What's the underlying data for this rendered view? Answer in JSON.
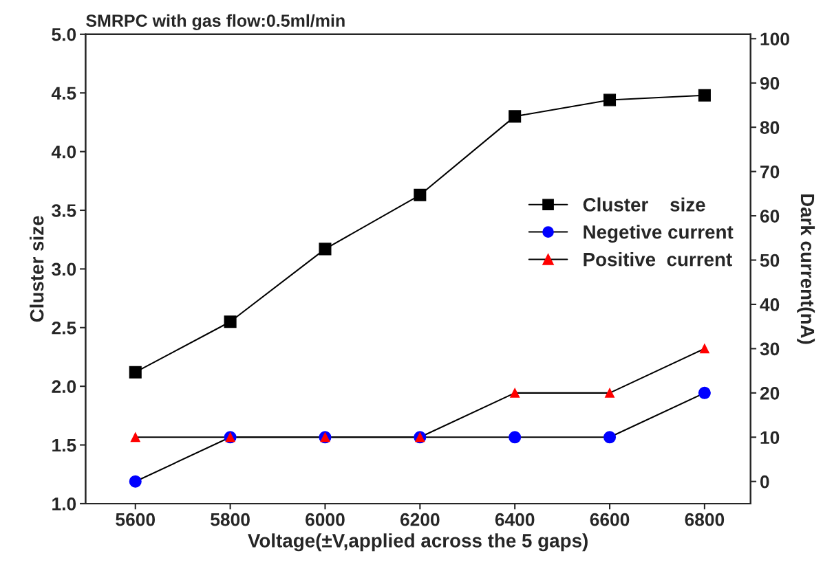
{
  "chart_data": {
    "type": "line",
    "title": "SMRPC with gas flow:0.5ml/min",
    "xlabel": "Voltage(±V,applied across the 5 gaps)",
    "ylabel": "Cluster size",
    "y2label": "Dark current(nA)",
    "x": [
      5600,
      5800,
      6000,
      6200,
      6400,
      6600,
      6800
    ],
    "series": [
      {
        "name": "Cluster    size",
        "color": "#000000",
        "marker": "square",
        "values": [
          2.12,
          2.55,
          3.17,
          3.63,
          4.3,
          4.44,
          4.48
        ]
      },
      {
        "name": "Negetive current",
        "color": "#0000ff",
        "marker": "circle",
        "axis": "y2",
        "values": [
          0,
          10,
          10,
          10,
          10,
          10,
          20
        ]
      },
      {
        "name": "Positive  current",
        "color": "#ff0000",
        "marker": "triangle",
        "axis": "y2",
        "values": [
          10,
          10,
          10,
          10,
          20,
          20,
          30
        ]
      }
    ],
    "xlim": [
      5495,
      6897
    ],
    "xticks": [
      5600,
      5800,
      6000,
      6200,
      6400,
      6600,
      6800
    ],
    "ylim": [
      1.0,
      5.0
    ],
    "yticks": [
      {
        "value": 1.0,
        "label": "1.0"
      },
      {
        "value": 1.5,
        "label": "1.5"
      },
      {
        "value": 2.0,
        "label": "2.0"
      },
      {
        "value": 2.5,
        "label": "2.5"
      },
      {
        "value": 3.0,
        "label": "3.0"
      },
      {
        "value": 3.5,
        "label": "3.5"
      },
      {
        "value": 4.0,
        "label": "4.0"
      },
      {
        "value": 4.5,
        "label": "4.5"
      },
      {
        "value": 5.0,
        "label": "5.0"
      }
    ],
    "y2lim": [
      -5,
      101
    ],
    "y2ticks": [
      0,
      10,
      20,
      30,
      40,
      50,
      60,
      70,
      80,
      90,
      100
    ],
    "legend": "center right",
    "grid": false
  }
}
